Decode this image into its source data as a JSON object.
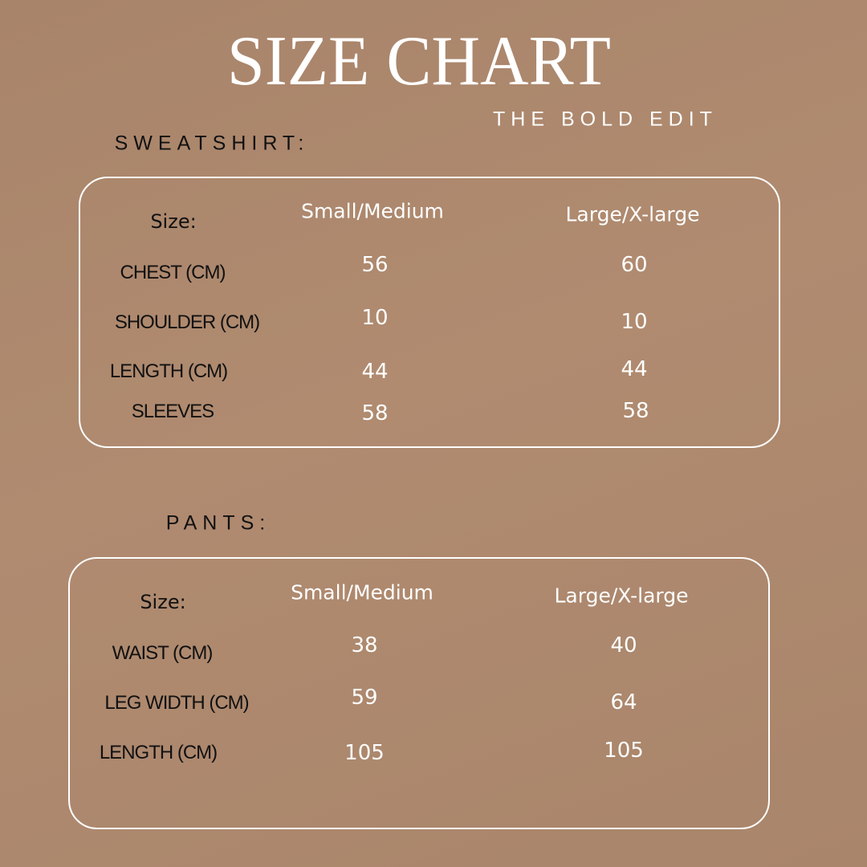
{
  "title": "SIZE CHART",
  "subtitle": "THE BOLD EDIT",
  "colors": {
    "background": "#ab876d",
    "text_light": "#ffffff",
    "text_dark": "#111111"
  },
  "sweatshirt": {
    "heading": "SWEATSHIRT:",
    "size_label": "Size:",
    "columns": [
      "Small/Medium",
      "Large/X-large"
    ],
    "rows": [
      {
        "label": "CHEST (CM)",
        "values": [
          "56",
          "60"
        ]
      },
      {
        "label": "SHOULDER (CM)",
        "values": [
          "10",
          "10"
        ]
      },
      {
        "label": "LENGTH (CM)",
        "values": [
          "44",
          "44"
        ]
      },
      {
        "label": "SLEEVES",
        "values": [
          "58",
          "58"
        ]
      }
    ]
  },
  "pants": {
    "heading": "PANTS:",
    "size_label": "Size:",
    "columns": [
      "Small/Medium",
      "Large/X-large"
    ],
    "rows": [
      {
        "label": "WAIST (CM)",
        "values": [
          "38",
          "40"
        ]
      },
      {
        "label": "LEG WIDTH (CM)",
        "values": [
          "59",
          "64"
        ]
      },
      {
        "label": "LENGTH (CM)",
        "values": [
          "105",
          "105"
        ]
      }
    ]
  }
}
